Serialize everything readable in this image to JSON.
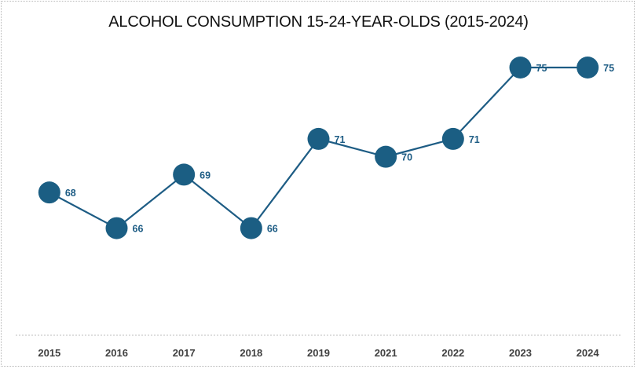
{
  "chart_data": {
    "type": "line",
    "title": "ALCOHOL CONSUMPTION 15-24-YEAR-OLDS (2015-2024)",
    "xlabel": "",
    "ylabel": "",
    "categories": [
      "2015",
      "2016",
      "2017",
      "2018",
      "2019",
      "2021",
      "2022",
      "2023",
      "2024"
    ],
    "series": [
      {
        "name": "Alcohol consumption",
        "values": [
          68,
          66,
          69,
          66,
          71,
          70,
          71,
          75,
          75
        ]
      }
    ],
    "ylim": [
      60,
      75
    ],
    "y_axis_visible": false,
    "grid": false,
    "legend": "none",
    "data_labels": true,
    "colors": {
      "line": "#1d5c84",
      "marker": "#1b5e83",
      "label": "#1d5c84",
      "axis_text": "#404040",
      "baseline": "#bdbdbd"
    }
  }
}
